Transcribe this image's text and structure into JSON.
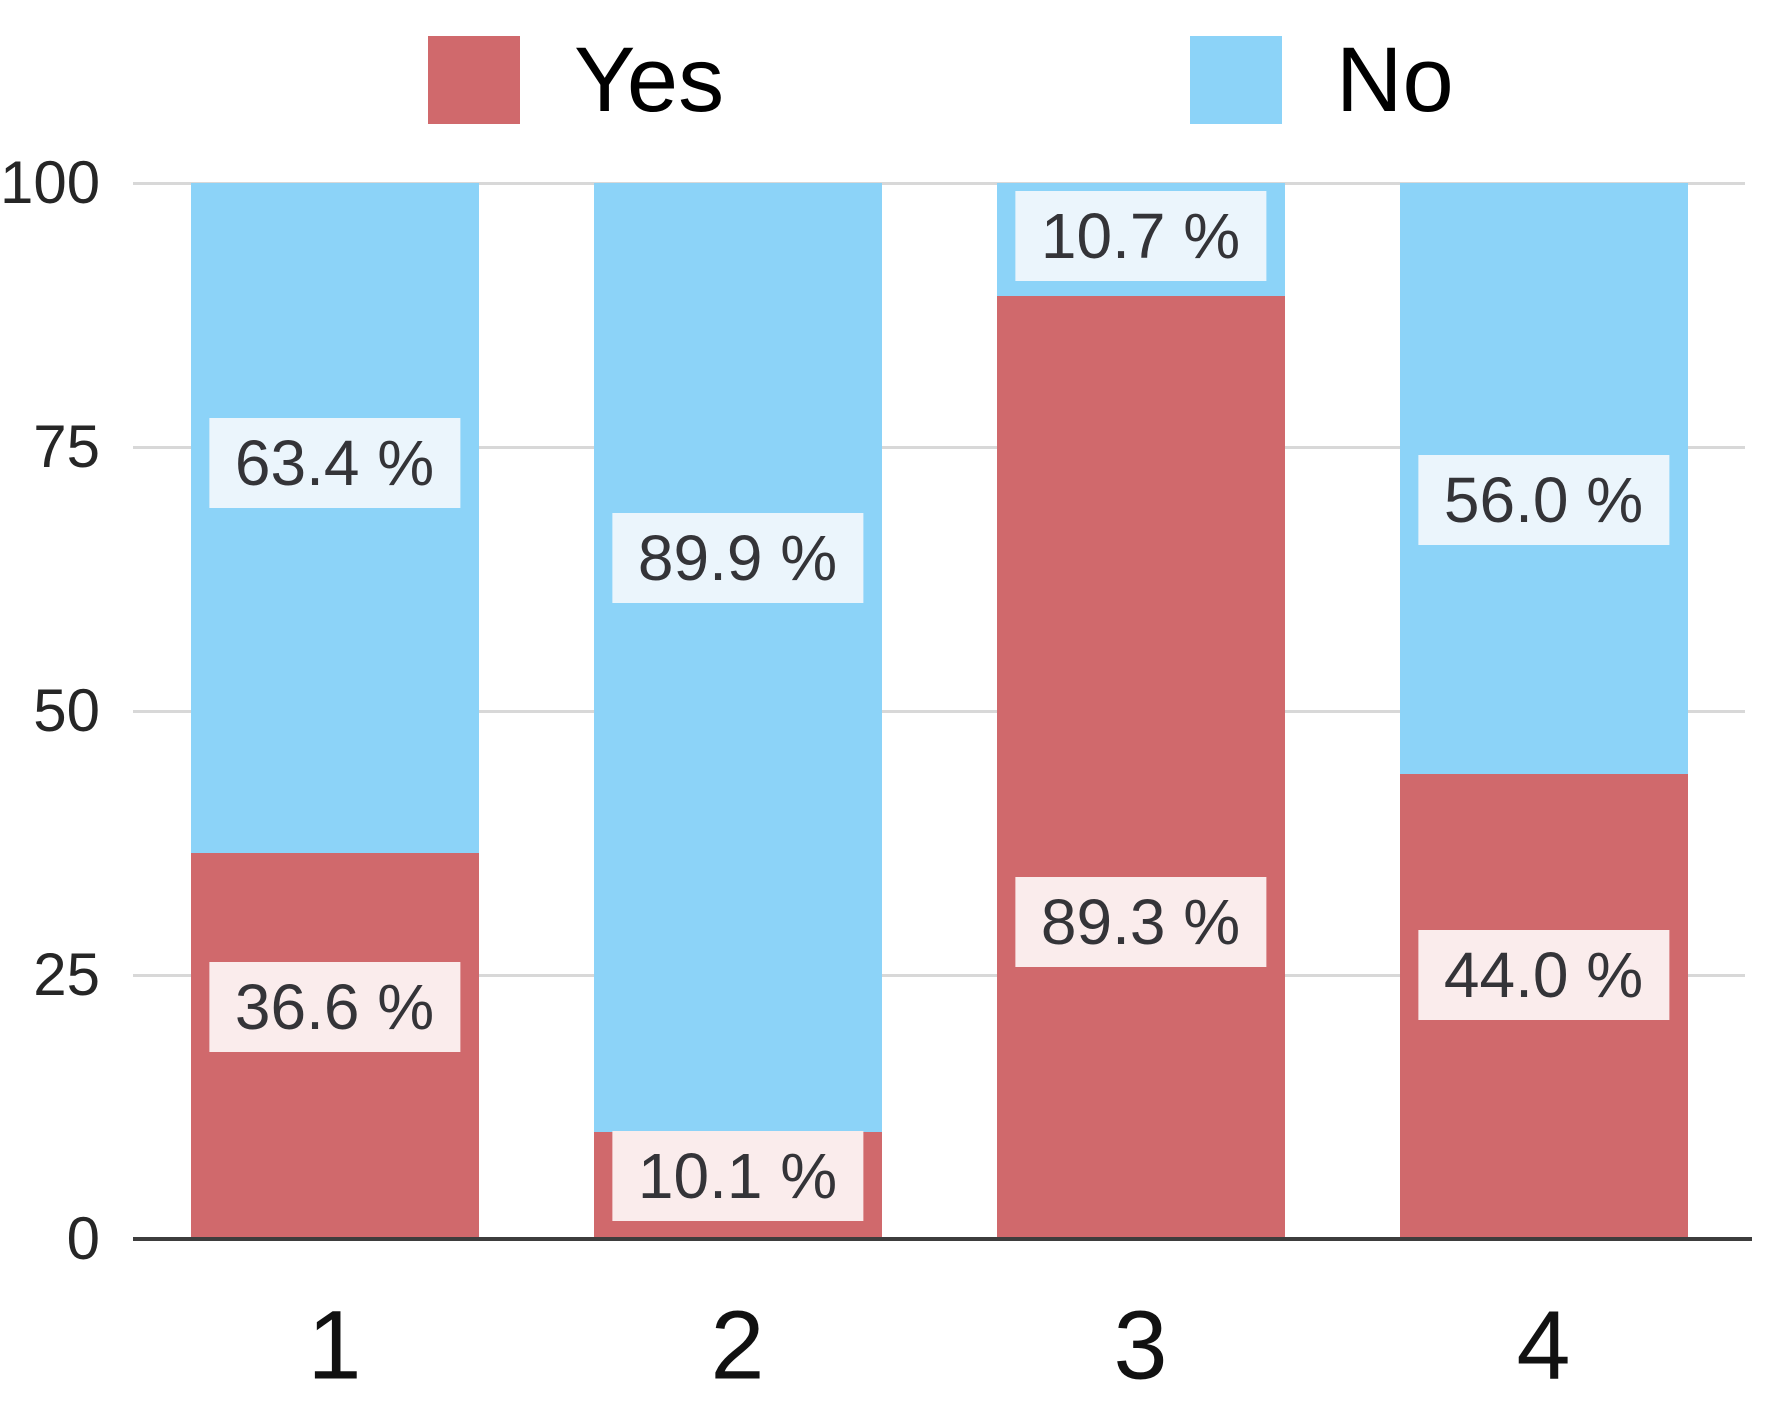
{
  "chart_data": {
    "type": "bar",
    "stacked": true,
    "orientation": "vertical",
    "title": "",
    "xlabel": "",
    "ylabel": "",
    "categories": [
      "1",
      "2",
      "3",
      "4"
    ],
    "series": [
      {
        "name": "Yes",
        "color": "#D0696C",
        "label_bg": "#FAECEC",
        "values": [
          36.6,
          10.1,
          89.3,
          44.0
        ],
        "data_labels": [
          "36.6 %",
          "10.1 %",
          "89.3 %",
          "44.0 %"
        ],
        "label_center_values": [
          22,
          6,
          30,
          25
        ]
      },
      {
        "name": "No",
        "color": "#8CD3F8",
        "label_bg": "#EBF5FC",
        "values": [
          63.4,
          89.9,
          10.7,
          56.0
        ],
        "data_labels": [
          "63.4 %",
          "89.9 %",
          "10.7 %",
          "56.0 %"
        ],
        "label_center_values": [
          73.5,
          64.5,
          95,
          70
        ]
      }
    ],
    "y_ticks": [
      "0",
      "25",
      "50",
      "75",
      "100"
    ],
    "y_tick_values": [
      0,
      25,
      50,
      75,
      100
    ],
    "ylim": [
      0,
      100
    ],
    "grid": true,
    "legend_position": "top",
    "value_suffix": " %"
  },
  "colors": {
    "grid_line": "#D8D8D8",
    "axis_line": "#3D3D3D",
    "label_text": "#343438",
    "tick_text": "#262626",
    "category_text": "#111111",
    "legend_text": "#000000",
    "background": "#FFFFFF"
  }
}
